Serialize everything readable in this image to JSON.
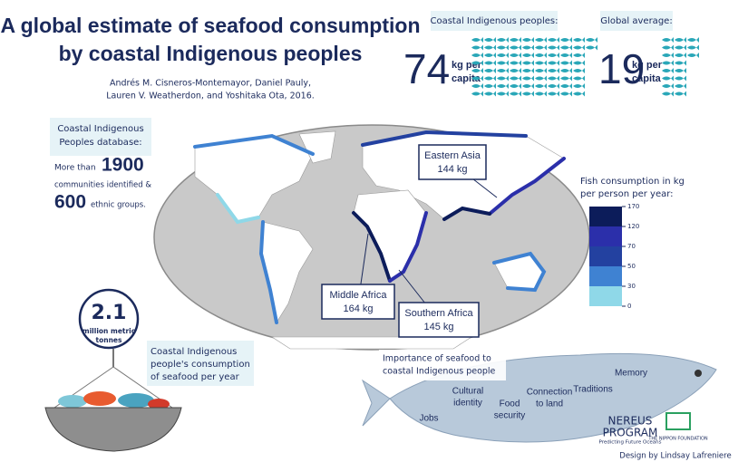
{
  "header": {
    "title_lines": [
      "A global estimate of seafood consumption",
      "by coastal Indigenous peoples"
    ],
    "authors_lines": [
      "Andrés M. Cisneros-Montemayor, Daniel Pauly,",
      "Lauren V. Weatherdon, and Yoshitaka Ota, 2016."
    ]
  },
  "stats": [
    {
      "label": "Coastal Indigenous peoples:",
      "value": 74,
      "unit_lines": [
        "kg per",
        "capita"
      ]
    },
    {
      "label": "Global average:",
      "value": 19,
      "unit_lines": [
        "kg per",
        "capita"
      ]
    }
  ],
  "database": {
    "heading_lines": [
      "Coastal Indigenous",
      "Peoples database:"
    ],
    "prefix": "More than",
    "communities": 1900,
    "communities_text": "communities identified &",
    "groups": 600,
    "groups_text": "ethnic groups."
  },
  "map_callouts": [
    {
      "region": "Eastern Asia",
      "value": 144,
      "value_label": "144 kg"
    },
    {
      "region": "Middle Africa",
      "value": 164,
      "value_label": "164 kg"
    },
    {
      "region": "Southern Africa",
      "value": 145,
      "value_label": "145 kg"
    }
  ],
  "legend": {
    "title_lines": [
      "Fish consumption in kg",
      "per person per year:"
    ],
    "colors": [
      "#8fd8e8",
      "#3f82d2",
      "#2341a0",
      "#2b2faa",
      "#0c1c5a"
    ],
    "ticks": [
      0,
      30,
      50,
      70,
      120,
      170
    ]
  },
  "total": {
    "value": 2.1,
    "unit_lines": [
      "million metric",
      "tonnes"
    ],
    "caption_lines": [
      "Coastal Indigenous",
      "people's consumption",
      "of seafood per year"
    ]
  },
  "importance": {
    "heading_lines": [
      "Importance of seafood to",
      "coastal Indigenous people"
    ],
    "items": [
      [
        "Jobs"
      ],
      [
        "Cultural",
        "identity"
      ],
      [
        "Food",
        "security"
      ],
      [
        "Connection",
        "to land"
      ],
      [
        "Traditions"
      ],
      [
        "Memory"
      ]
    ]
  },
  "credits": {
    "nereus_lines": [
      "NEREUS",
      "PROGRAM"
    ],
    "nereus_tagline": "Predicting Future Oceans",
    "nippon": "THE NIPPON FOUNDATION",
    "designer": "Design by Lindsay Lafreniere"
  }
}
